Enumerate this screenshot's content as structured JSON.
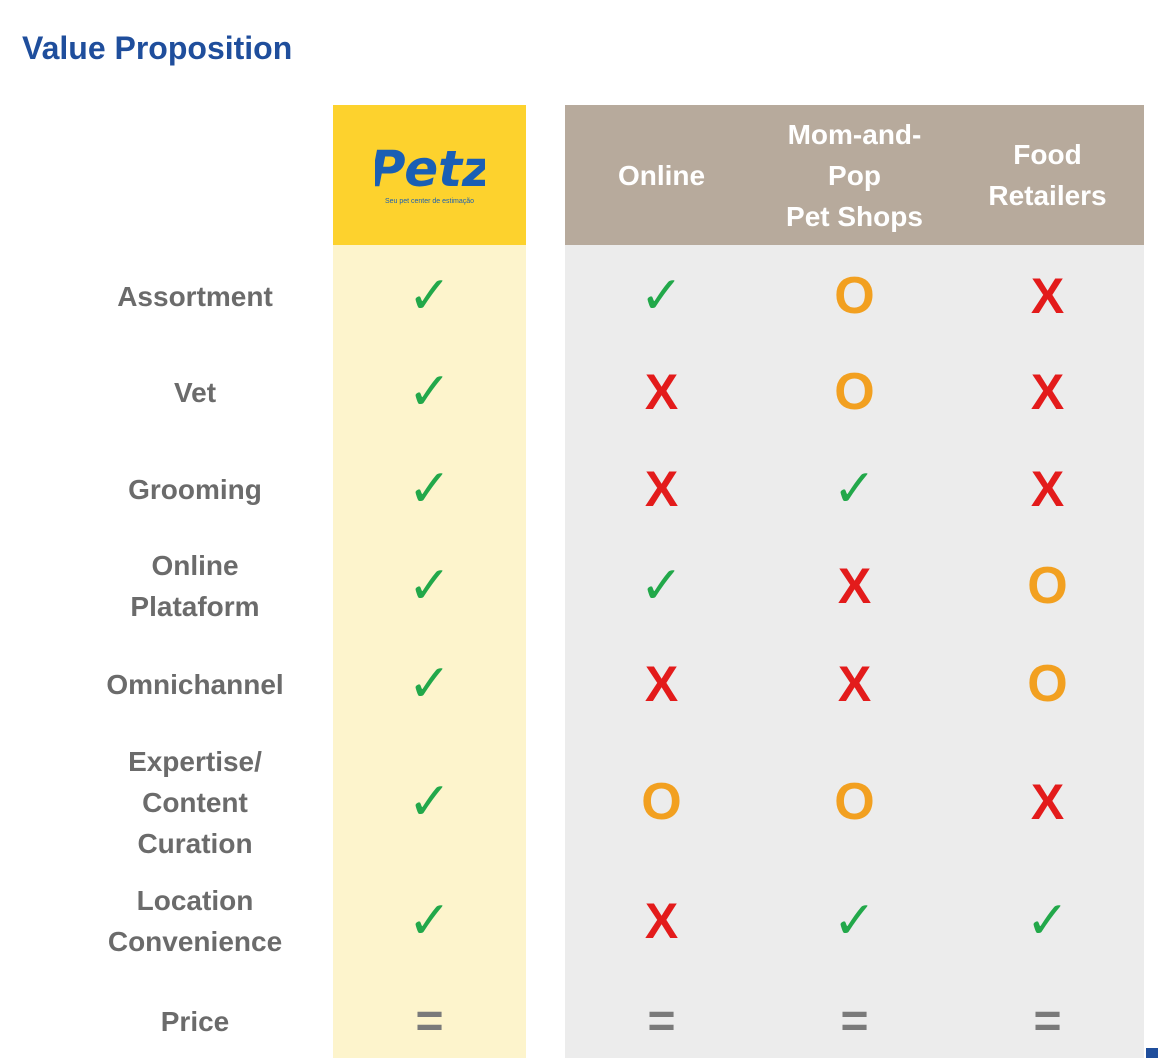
{
  "title": "Value Proposition",
  "brand": {
    "name": "Petz",
    "tagline": "Seu pet center de estimação",
    "logo_color": "#1a5fb4",
    "header_color": "#fdd22d",
    "column_color": "#fdf4cc"
  },
  "columns": [
    "Online",
    "Mom-and-\nPop\nPet Shops",
    "Food\nRetailers"
  ],
  "rows": [
    {
      "label": "Assortment",
      "values": [
        "check",
        "check",
        "O",
        "X"
      ]
    },
    {
      "label": "Vet",
      "values": [
        "check",
        "X",
        "O",
        "X"
      ]
    },
    {
      "label": "Grooming",
      "values": [
        "check",
        "X",
        "check",
        "X"
      ]
    },
    {
      "label": "Online\nPlataform",
      "values": [
        "check",
        "check",
        "X",
        "O"
      ]
    },
    {
      "label": "Omnichannel",
      "values": [
        "check",
        "X",
        "X",
        "O"
      ]
    },
    {
      "label": "Expertise/\nContent\nCuration",
      "values": [
        "check",
        "O",
        "O",
        "X"
      ]
    },
    {
      "label": "Location\nConvenience",
      "values": [
        "check",
        "X",
        "check",
        "check"
      ]
    },
    {
      "label": "Price",
      "values": [
        "=",
        "=",
        "=",
        "="
      ]
    }
  ],
  "symbols": {
    "check": "✓",
    "X": "X",
    "O": "O",
    "=": "="
  },
  "colors": {
    "check": "#22a84a",
    "X": "#e31b1b",
    "O": "#f2a020",
    "=": "#7a7a7a",
    "competitor_header": "#b7aa9c",
    "title": "#1f4e9c"
  }
}
